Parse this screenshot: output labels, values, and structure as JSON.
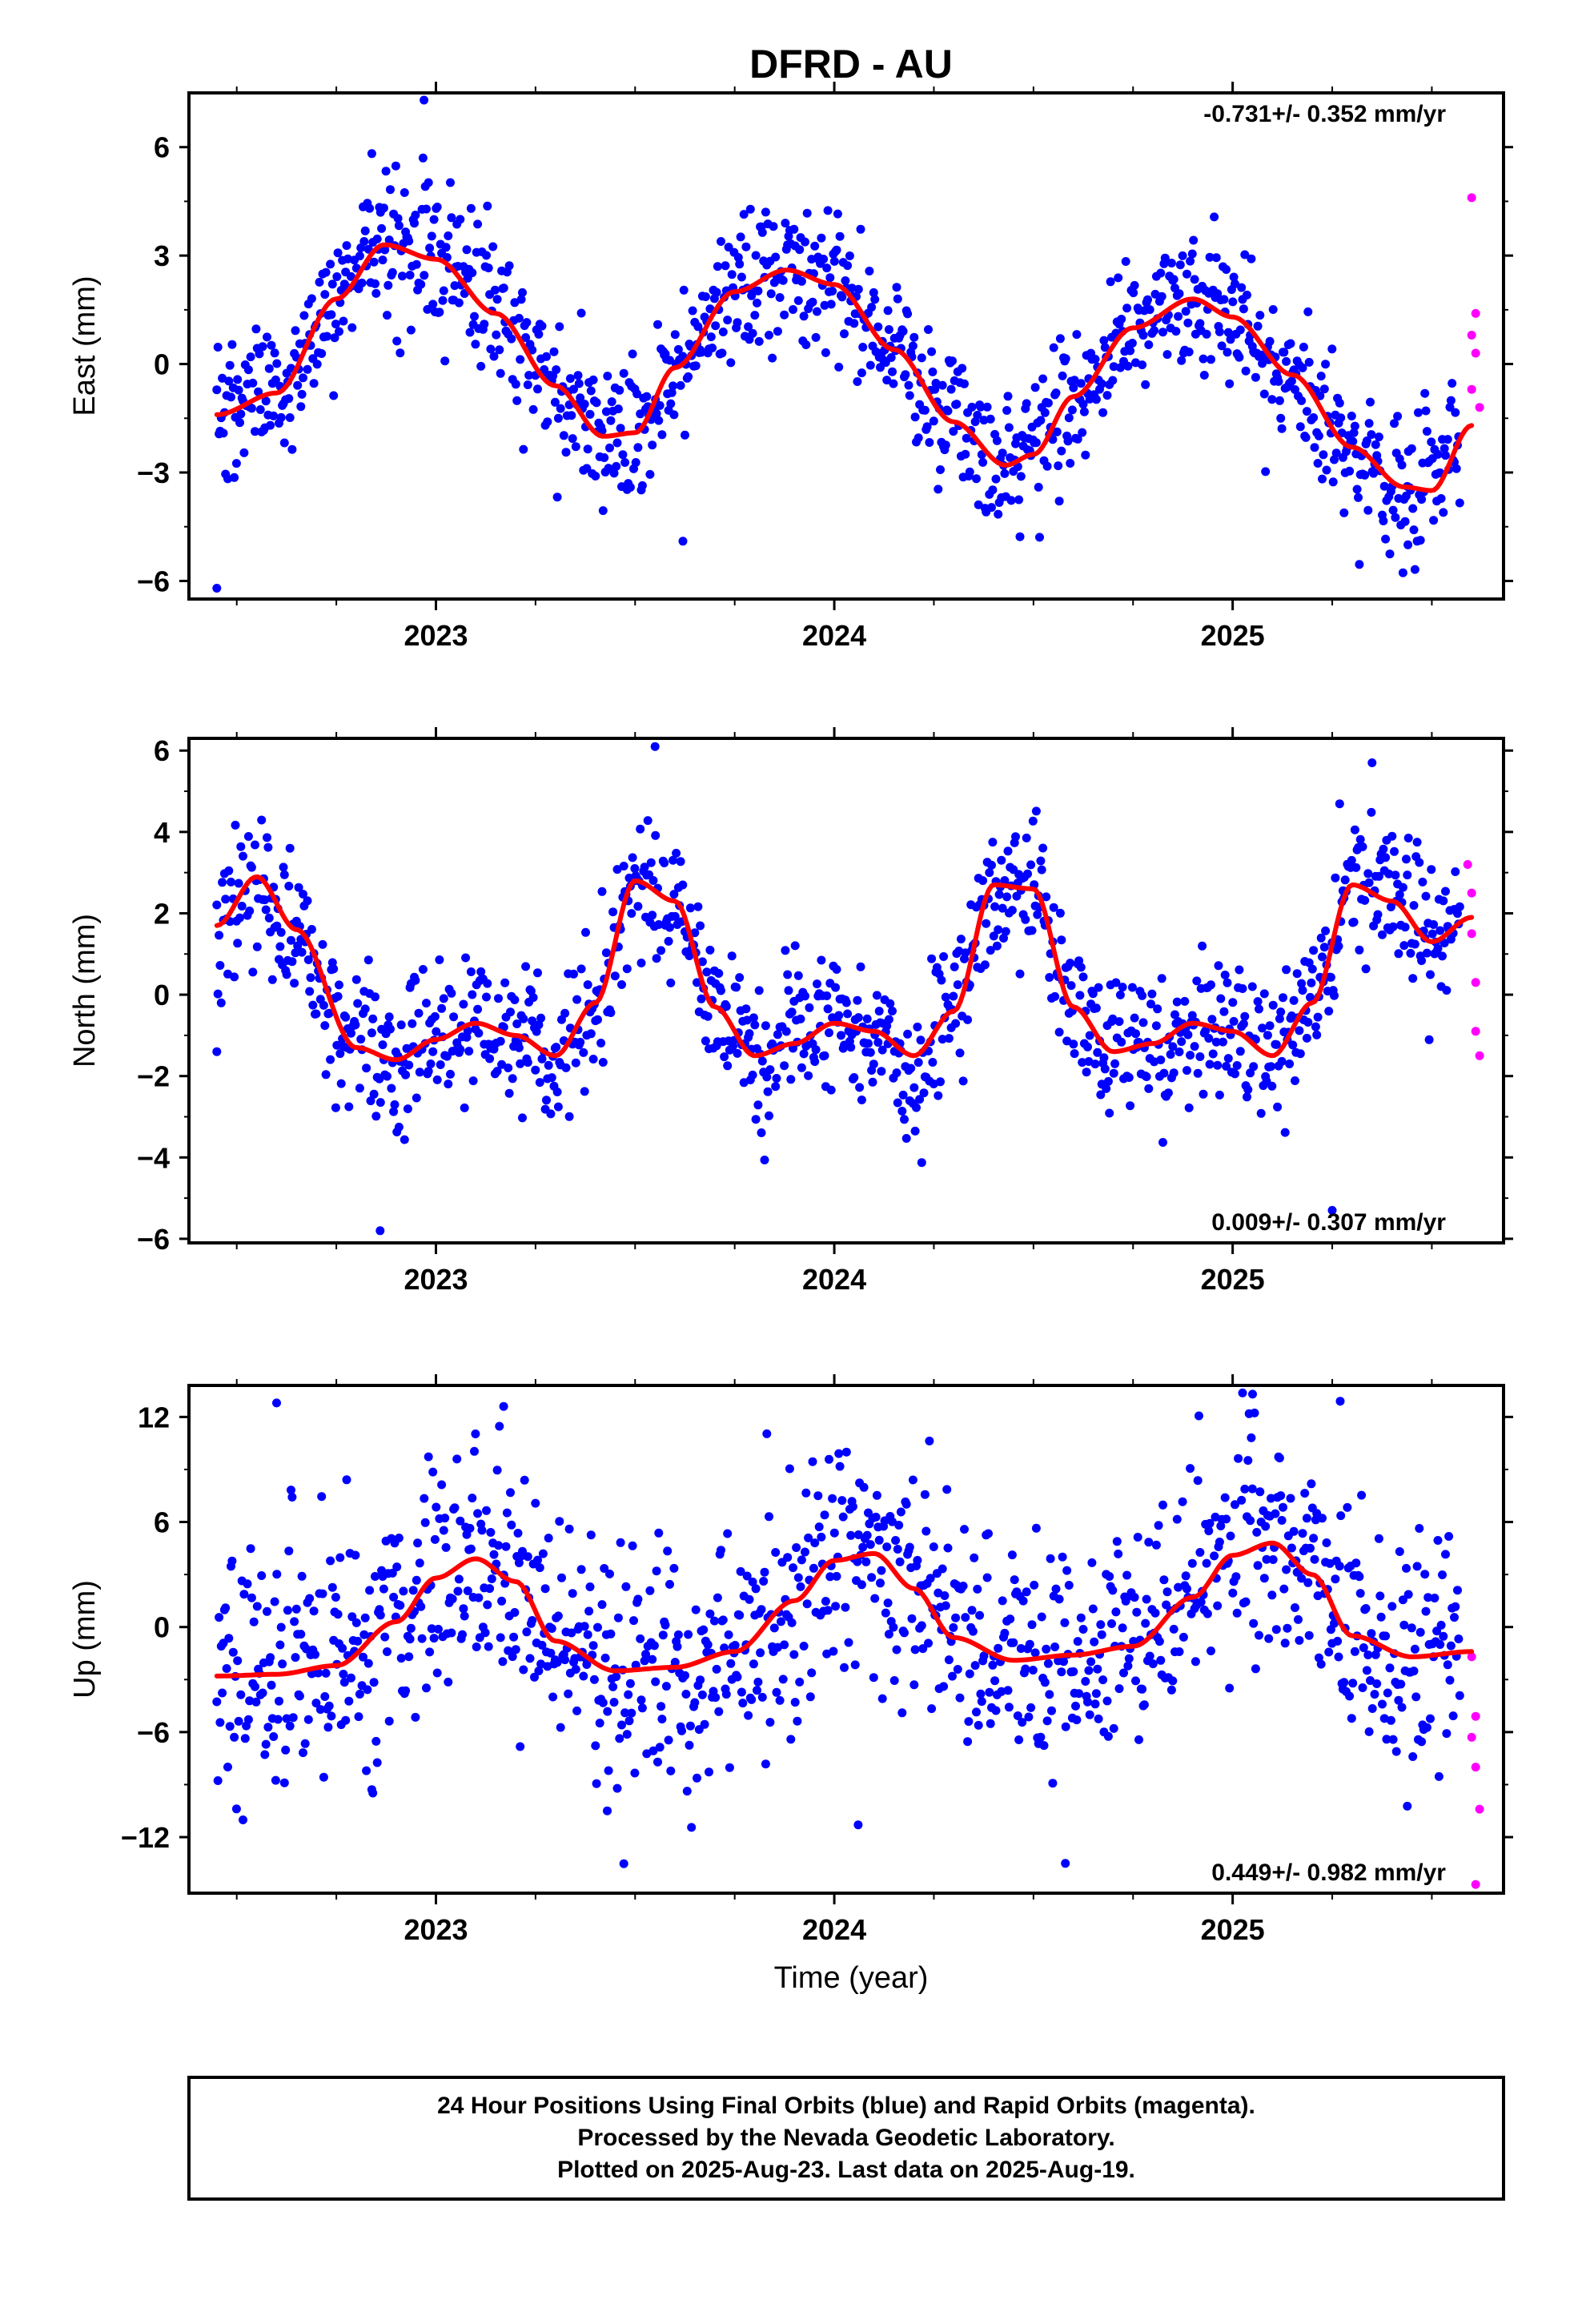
{
  "title": "DFRD - AU",
  "x_axis_label": "Time (year)",
  "colors": {
    "final": "#0000ff",
    "rapid": "#ff00ff",
    "model": "#ff0000",
    "frame": "#000000"
  },
  "footer": {
    "line1": "24 Hour Positions Using Final Orbits (blue) and Rapid Orbits (magenta).",
    "line2": "Processed by the Nevada Geodetic Laboratory.",
    "line3": "Plotted on 2025-Aug-23. Last data on 2025-Aug-19."
  },
  "chart_data": [
    {
      "type": "scatter",
      "ylabel": "East (mm)",
      "rate_label": "-0.731+/- 0.352 mm/yr",
      "rate_position": "top-right",
      "xlim": [
        2022.38,
        2025.68
      ],
      "ylim": [
        -6.5,
        7.5
      ],
      "yticks": [
        -6,
        -3,
        0,
        3,
        6
      ],
      "xticks": [
        2023,
        2024,
        2025
      ],
      "model": {
        "name": "seasonal fit",
        "x": [
          2022.45,
          2022.6,
          2022.75,
          2022.87,
          2023.0,
          2023.15,
          2023.3,
          2023.42,
          2023.5,
          2023.6,
          2023.75,
          2023.88,
          2024.0,
          2024.15,
          2024.3,
          2024.43,
          2024.5,
          2024.6,
          2024.75,
          2024.9,
          2025.0,
          2025.15,
          2025.3,
          2025.43,
          2025.5,
          2025.6
        ],
        "y": [
          -1.4,
          -0.8,
          1.8,
          3.3,
          2.9,
          1.4,
          -0.6,
          -2.0,
          -1.9,
          -0.1,
          2.0,
          2.6,
          2.2,
          0.4,
          -1.6,
          -2.8,
          -2.5,
          -0.9,
          1.0,
          1.8,
          1.3,
          -0.3,
          -2.3,
          -3.4,
          -3.5,
          -1.7
        ]
      },
      "final_orbit_series": {
        "name": "Final Orbits",
        "x_start": 2022.45,
        "x_end": 2025.57,
        "n_points": 1140,
        "noise_mm": 1.0,
        "outliers": [
          [
            2022.97,
            7.3
          ],
          [
            2023.62,
            -4.9
          ],
          [
            2022.45,
            -6.2
          ],
          [
            2025.44,
            -5.0
          ]
        ]
      },
      "rapid_orbit_points": {
        "name": "Rapid Orbits",
        "x": [
          2025.6,
          2025.61,
          2025.6,
          2025.61,
          2025.6,
          2025.62
        ],
        "y": [
          4.6,
          1.4,
          0.8,
          0.3,
          -0.7,
          -1.2
        ]
      }
    },
    {
      "type": "scatter",
      "ylabel": "North (mm)",
      "rate_label": "0.009+/- 0.307 mm/yr",
      "rate_position": "bottom-right",
      "xlim": [
        2022.38,
        2025.68
      ],
      "ylim": [
        -6.1,
        6.3
      ],
      "yticks": [
        -6,
        -4,
        -2,
        0,
        2,
        4,
        6
      ],
      "xticks": [
        2023,
        2024,
        2025
      ],
      "model": {
        "name": "seasonal fit",
        "x": [
          2022.45,
          2022.55,
          2022.65,
          2022.8,
          2022.9,
          2023.0,
          2023.1,
          2023.2,
          2023.3,
          2023.4,
          2023.5,
          2023.6,
          2023.7,
          2023.8,
          2023.9,
          2024.0,
          2024.1,
          2024.2,
          2024.3,
          2024.4,
          2024.5,
          2024.6,
          2024.7,
          2024.8,
          2024.9,
          2025.0,
          2025.1,
          2025.2,
          2025.3,
          2025.4,
          2025.5,
          2025.6
        ],
        "y": [
          1.7,
          2.9,
          1.6,
          -1.3,
          -1.6,
          -1.1,
          -0.7,
          -1.0,
          -1.5,
          -0.2,
          2.8,
          2.3,
          -0.3,
          -1.5,
          -1.2,
          -0.7,
          -0.9,
          -1.5,
          -0.4,
          2.7,
          2.6,
          -0.3,
          -1.4,
          -1.2,
          -0.7,
          -0.9,
          -1.5,
          -0.2,
          2.7,
          2.3,
          1.3,
          1.9
        ]
      },
      "final_orbit_series": {
        "name": "Final Orbits",
        "x_start": 2022.45,
        "x_end": 2025.57,
        "n_points": 1140,
        "noise_mm": 0.9,
        "outliers": [
          [
            2023.55,
            6.1
          ],
          [
            2022.86,
            -5.8
          ],
          [
            2025.35,
            5.7
          ],
          [
            2025.25,
            -5.3
          ],
          [
            2022.45,
            -1.4
          ]
        ]
      },
      "rapid_orbit_points": {
        "name": "Rapid Orbits",
        "x": [
          2025.59,
          2025.6,
          2025.6,
          2025.61,
          2025.61,
          2025.62
        ],
        "y": [
          3.2,
          2.5,
          1.5,
          0.3,
          -0.9,
          -1.5
        ]
      }
    },
    {
      "type": "scatter",
      "ylabel": "Up (mm)",
      "rate_label": "0.449+/- 0.982 mm/yr",
      "rate_position": "bottom-right",
      "xlim": [
        2022.38,
        2025.68
      ],
      "ylim": [
        -15.2,
        13.8
      ],
      "yticks": [
        -12,
        -6,
        0,
        6,
        12
      ],
      "xticks": [
        2023,
        2024,
        2025
      ],
      "model": {
        "name": "seasonal fit",
        "x": [
          2022.45,
          2022.6,
          2022.75,
          2022.9,
          2023.0,
          2023.1,
          2023.2,
          2023.3,
          2023.45,
          2023.6,
          2023.75,
          2023.9,
          2024.0,
          2024.1,
          2024.2,
          2024.3,
          2024.45,
          2024.6,
          2024.75,
          2024.9,
          2025.0,
          2025.1,
          2025.2,
          2025.3,
          2025.45,
          2025.6
        ],
        "y": [
          -2.8,
          -2.7,
          -2.2,
          0.3,
          2.8,
          3.9,
          2.6,
          -0.8,
          -2.5,
          -2.3,
          -1.4,
          1.5,
          3.8,
          4.2,
          2.2,
          -0.6,
          -1.9,
          -1.6,
          -1.1,
          1.7,
          4.1,
          4.8,
          3.0,
          -0.5,
          -1.7,
          -1.4
        ]
      },
      "final_orbit_series": {
        "name": "Final Orbits",
        "x_start": 2022.45,
        "x_end": 2025.57,
        "n_points": 1140,
        "noise_mm": 3.4,
        "outliers": [
          [
            2022.6,
            12.8
          ],
          [
            2023.17,
            12.6
          ],
          [
            2025.05,
            13.3
          ],
          [
            2025.27,
            12.9
          ],
          [
            2024.06,
            -11.3
          ],
          [
            2024.58,
            -13.5
          ],
          [
            2023.43,
            -10.5
          ]
        ]
      },
      "rapid_orbit_points": {
        "name": "Rapid Orbits",
        "x": [
          2025.6,
          2025.61,
          2025.6,
          2025.61,
          2025.62,
          2025.61
        ],
        "y": [
          -1.7,
          -5.1,
          -6.3,
          -8.0,
          -10.4,
          -14.7
        ]
      }
    }
  ]
}
